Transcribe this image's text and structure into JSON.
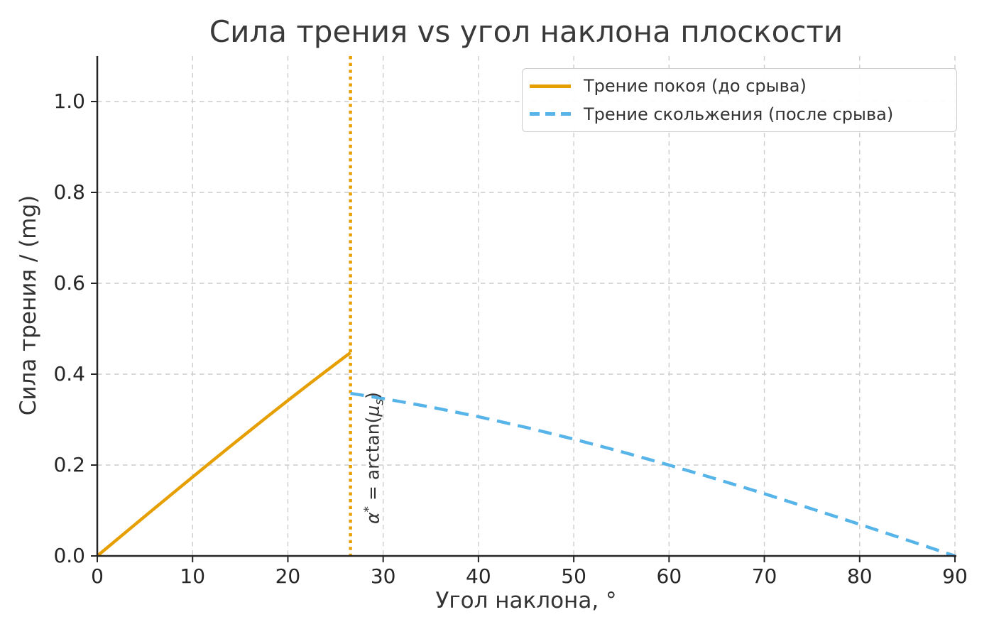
{
  "title": "Сила трения vs угол наклона плоскости",
  "colors": {
    "static_line": "#E69F00",
    "kinetic_line": "#56B4E9",
    "grid": "#cccccc",
    "spine": "#262626",
    "text": "#333333",
    "legend_border": "#cccccc"
  },
  "chart_data": {
    "type": "line",
    "title": "Сила трения vs угол наклона плоскости",
    "xlabel": "Угол наклона, °",
    "ylabel": "Сила трения / (mg)",
    "xlim": [
      0,
      90
    ],
    "ylim": [
      0,
      1.1
    ],
    "grid": "dashed",
    "legend_position": "upper right",
    "xticks": {
      "values": [
        0,
        10,
        20,
        30,
        40,
        50,
        60,
        70,
        80,
        90
      ],
      "labels": [
        "0",
        "10",
        "20",
        "30",
        "40",
        "50",
        "60",
        "70",
        "80",
        "90"
      ]
    },
    "yticks": {
      "values": [
        0.0,
        0.2,
        0.4,
        0.6,
        0.8,
        1.0
      ],
      "labels": [
        "0.0",
        "0.2",
        "0.4",
        "0.6",
        "0.8",
        "1.0"
      ]
    },
    "series": [
      {
        "name": "Трение покоя (до срыва)",
        "color": "#E69F00",
        "style": "solid",
        "x": [
          0,
          2,
          4,
          6,
          8,
          10,
          12,
          14,
          16,
          18,
          20,
          22,
          24,
          26,
          26.57
        ],
        "y": [
          0,
          0.0349,
          0.0698,
          0.1045,
          0.1392,
          0.1736,
          0.2079,
          0.2419,
          0.2756,
          0.309,
          0.342,
          0.3746,
          0.4067,
          0.4384,
          0.4472
        ]
      },
      {
        "name": "Трение скольжения (после срыва)",
        "color": "#56B4E9",
        "style": "dashed",
        "x": [
          26.57,
          30,
          35,
          40,
          45,
          50,
          55,
          60,
          65,
          70,
          75,
          80,
          85,
          90
        ],
        "y": [
          0.3578,
          0.3464,
          0.3277,
          0.3064,
          0.2828,
          0.2571,
          0.2294,
          0.2,
          0.169,
          0.1368,
          0.1035,
          0.0695,
          0.0349,
          0
        ]
      }
    ],
    "vline": {
      "x": 26.57,
      "style": "dotted",
      "color": "#E69F00"
    },
    "annotation": {
      "alpha": "α",
      "star": "*",
      "eq": " = arctan(",
      "mu": "μ",
      "s": "s",
      "close": ")"
    }
  }
}
